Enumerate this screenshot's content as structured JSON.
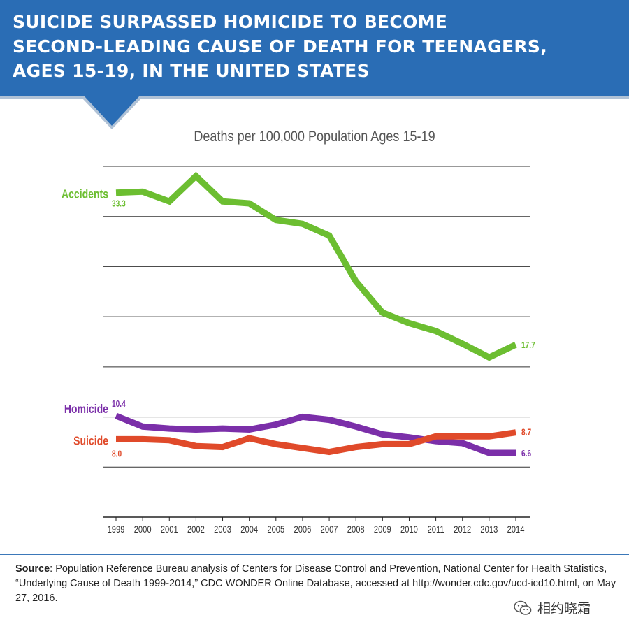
{
  "header": {
    "title_lines": [
      "SUICIDE SURPASSED HOMICIDE TO BECOME",
      "SECOND-LEADING CAUSE OF DEATH FOR TEENAGERS,",
      "AGES 15-19, IN THE UNITED STATES"
    ],
    "banner_color": "#2a6db5"
  },
  "chart_data": {
    "type": "line",
    "title": "Deaths per 100,000 Population Ages 15-19",
    "x": [
      "1999",
      "2000",
      "2001",
      "2002",
      "2003",
      "2004",
      "2005",
      "2006",
      "2007",
      "2008",
      "2009",
      "2010",
      "2011",
      "2012",
      "2013",
      "2014"
    ],
    "ylim": [
      0,
      36
    ],
    "grid": true,
    "series": [
      {
        "name": "Accidents",
        "color": "#6cbe31",
        "values": [
          33.3,
          33.4,
          32.4,
          35.0,
          32.4,
          32.2,
          30.5,
          30.1,
          28.9,
          24.2,
          21.0,
          19.9,
          19.1,
          17.8,
          16.4,
          17.7
        ],
        "start_label": "33.3",
        "end_label": "17.7"
      },
      {
        "name": "Homicide",
        "color": "#7b2fa9",
        "values": [
          10.4,
          9.3,
          9.1,
          9.0,
          9.1,
          9.0,
          9.5,
          10.3,
          10.0,
          9.3,
          8.5,
          8.2,
          7.8,
          7.6,
          6.6,
          6.6
        ],
        "start_label": "10.4",
        "end_label": "6.6"
      },
      {
        "name": "Suicide",
        "color": "#e04a2a",
        "values": [
          8.0,
          8.0,
          7.9,
          7.3,
          7.2,
          8.1,
          7.5,
          7.1,
          6.7,
          7.2,
          7.5,
          7.5,
          8.3,
          8.3,
          8.3,
          8.7
        ],
        "start_label": "8.0",
        "end_label": "8.7"
      }
    ]
  },
  "source": {
    "label": "Source",
    "text": ": Population Reference Bureau analysis of Centers for Disease Control and Prevention, National Center for Health Statistics, “Underlying Cause of Death 1999-2014,” CDC WONDER Online Database, accessed at http://wonder.cdc.gov/ucd-icd10.html, on May 27, 2016."
  },
  "watermark": {
    "icon": "wechat-icon",
    "text": "相约晓霜"
  }
}
